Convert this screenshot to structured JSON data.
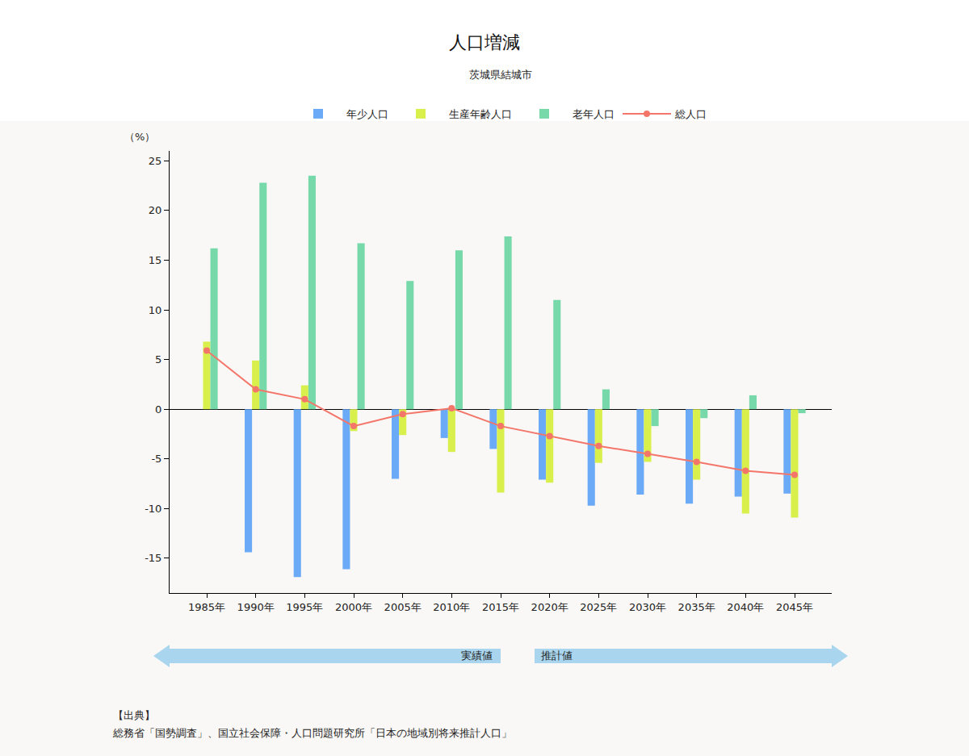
{
  "chart_data": {
    "type": "bar",
    "title": "人口増減",
    "subtitle": "茨城県結城市",
    "ylabel": "（%）",
    "categories": [
      "1985年",
      "1990年",
      "1995年",
      "2000年",
      "2005年",
      "2010年",
      "2015年",
      "2020年",
      "2025年",
      "2030年",
      "2035年",
      "2040年",
      "2045年"
    ],
    "series": [
      {
        "name": "総人口",
        "type": "line",
        "color": "#f4766a",
        "marker": "circle",
        "values": [
          5.9,
          2.0,
          1.0,
          -1.7,
          -0.5,
          0.1,
          -1.7,
          -2.7,
          -3.7,
          -4.5,
          -5.3,
          -6.2,
          -6.6
        ]
      },
      {
        "name": "年少人口",
        "type": "bar",
        "color": "#6aaaf6",
        "values": [
          null,
          -14.4,
          -16.9,
          -16.1,
          -7.0,
          -2.9,
          -4.0,
          -7.1,
          -9.7,
          -8.6,
          -9.5,
          -8.8,
          -8.5
        ]
      },
      {
        "name": "生産年齢人口",
        "type": "bar",
        "color": "#d9f04c",
        "values": [
          6.8,
          4.9,
          2.4,
          -2.2,
          -2.6,
          -4.3,
          -8.4,
          -7.4,
          -5.4,
          -5.3,
          -7.1,
          -10.5,
          -10.9
        ]
      },
      {
        "name": "老年人口",
        "type": "bar",
        "color": "#77d9a9",
        "values": [
          16.2,
          22.8,
          23.5,
          16.7,
          12.9,
          16.0,
          17.4,
          11.0,
          2.0,
          -1.7,
          -0.9,
          1.4,
          -0.4
        ]
      }
    ],
    "ylim": [
      -18.5,
      26
    ],
    "yticks": [
      -15,
      -10,
      -5,
      0,
      5,
      10,
      15,
      20,
      25
    ],
    "grid": false,
    "legend": "top",
    "annotations": [
      "実績値",
      "推計値"
    ],
    "source": [
      "【出典】",
      "総務省「国勢調査」、国立社会保障・人口問題研究所「日本の地域別将来推計人口」"
    ]
  }
}
